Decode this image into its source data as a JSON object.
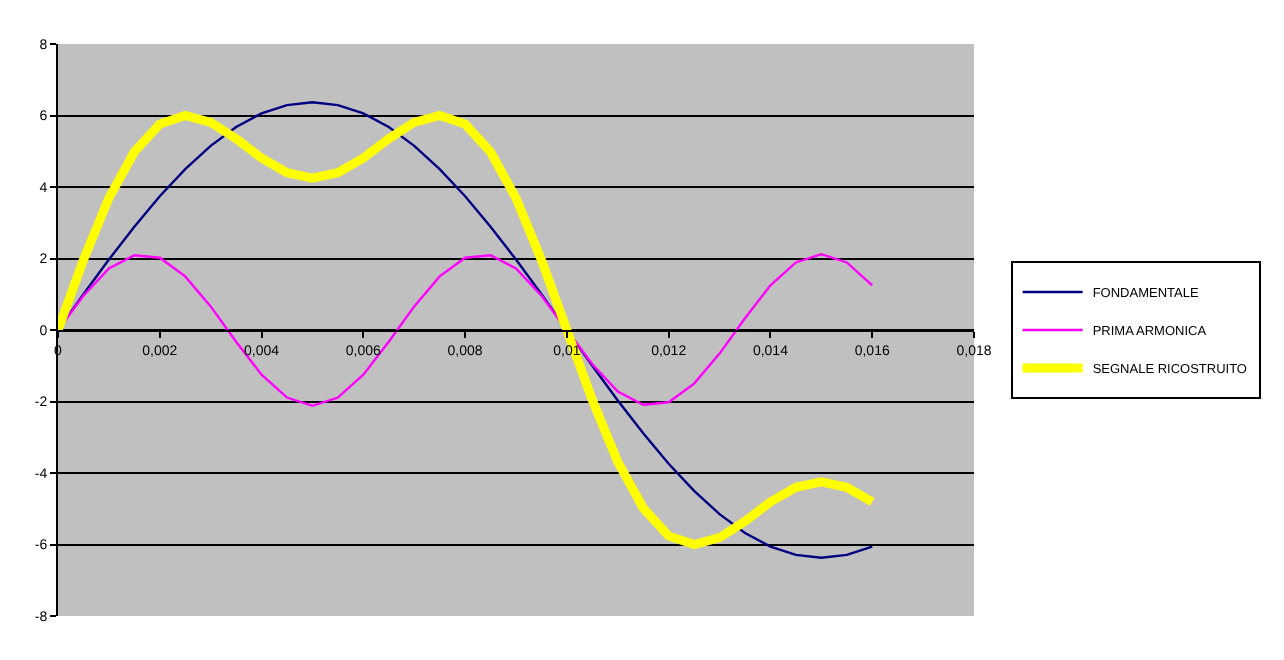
{
  "chart_data": {
    "type": "line",
    "x": [
      0,
      0.0005,
      0.001,
      0.0015,
      0.002,
      0.0025,
      0.003,
      0.0035,
      0.004,
      0.0045,
      0.005,
      0.0055,
      0.006,
      0.0065,
      0.007,
      0.0075,
      0.008,
      0.0085,
      0.009,
      0.0095,
      0.01,
      0.0105,
      0.011,
      0.0115,
      0.012,
      0.0125,
      0.013,
      0.0135,
      0.014,
      0.0145,
      0.015,
      0.0155,
      0.016
    ],
    "series": [
      {
        "name": "FONDAMENTALE",
        "color": "#000080",
        "values": [
          0,
          1.0,
          1.97,
          2.89,
          3.74,
          4.5,
          5.15,
          5.68,
          6.06,
          6.29,
          6.37,
          6.29,
          6.06,
          5.68,
          5.15,
          4.5,
          3.74,
          2.89,
          1.97,
          1.0,
          0,
          -1.0,
          -1.97,
          -2.89,
          -3.74,
          -4.5,
          -5.15,
          -5.68,
          -6.06,
          -6.29,
          -6.37,
          -6.29,
          -6.06
        ]
      },
      {
        "name": "PRIMA ARMONICA",
        "color": "#ff00ff",
        "values": [
          0,
          0.96,
          1.72,
          2.09,
          2.02,
          1.5,
          0.66,
          -0.33,
          -1.25,
          -1.89,
          -2.12,
          -1.89,
          -1.25,
          -0.33,
          0.66,
          1.5,
          2.02,
          2.09,
          1.72,
          0.96,
          0,
          -0.96,
          -1.72,
          -2.09,
          -2.02,
          -1.5,
          -0.66,
          0.33,
          1.25,
          1.89,
          2.12,
          1.89,
          1.25
        ]
      },
      {
        "name": "SEGNALE RICOSTRUITO",
        "color": "#ffff00",
        "values": [
          0,
          1.96,
          3.69,
          4.98,
          5.76,
          6.0,
          5.81,
          5.35,
          4.81,
          4.4,
          4.25,
          4.4,
          4.81,
          5.35,
          5.81,
          6.0,
          5.76,
          4.98,
          3.69,
          1.96,
          0,
          -1.96,
          -3.69,
          -4.98,
          -5.76,
          -6.0,
          -5.81,
          -5.35,
          -4.81,
          -4.4,
          -4.25,
          -4.4,
          -4.81
        ]
      }
    ],
    "xlim": [
      0,
      0.018
    ],
    "xticks": [
      {
        "value": 0,
        "label": "0"
      },
      {
        "value": 0.002,
        "label": "0,002"
      },
      {
        "value": 0.004,
        "label": "0,004"
      },
      {
        "value": 0.006,
        "label": "0,006"
      },
      {
        "value": 0.008,
        "label": "0,008"
      },
      {
        "value": 0.01,
        "label": "0,01"
      },
      {
        "value": 0.012,
        "label": "0,012"
      },
      {
        "value": 0.014,
        "label": "0,014"
      },
      {
        "value": 0.016,
        "label": "0,016"
      },
      {
        "value": 0.018,
        "label": "0,018"
      }
    ],
    "ylim": [
      -8,
      8
    ],
    "yticks": [
      -8,
      -6,
      -4,
      -2,
      0,
      2,
      4,
      6,
      8
    ],
    "grid": "y",
    "legend": "right",
    "marker": "none",
    "line_style": "solid"
  }
}
